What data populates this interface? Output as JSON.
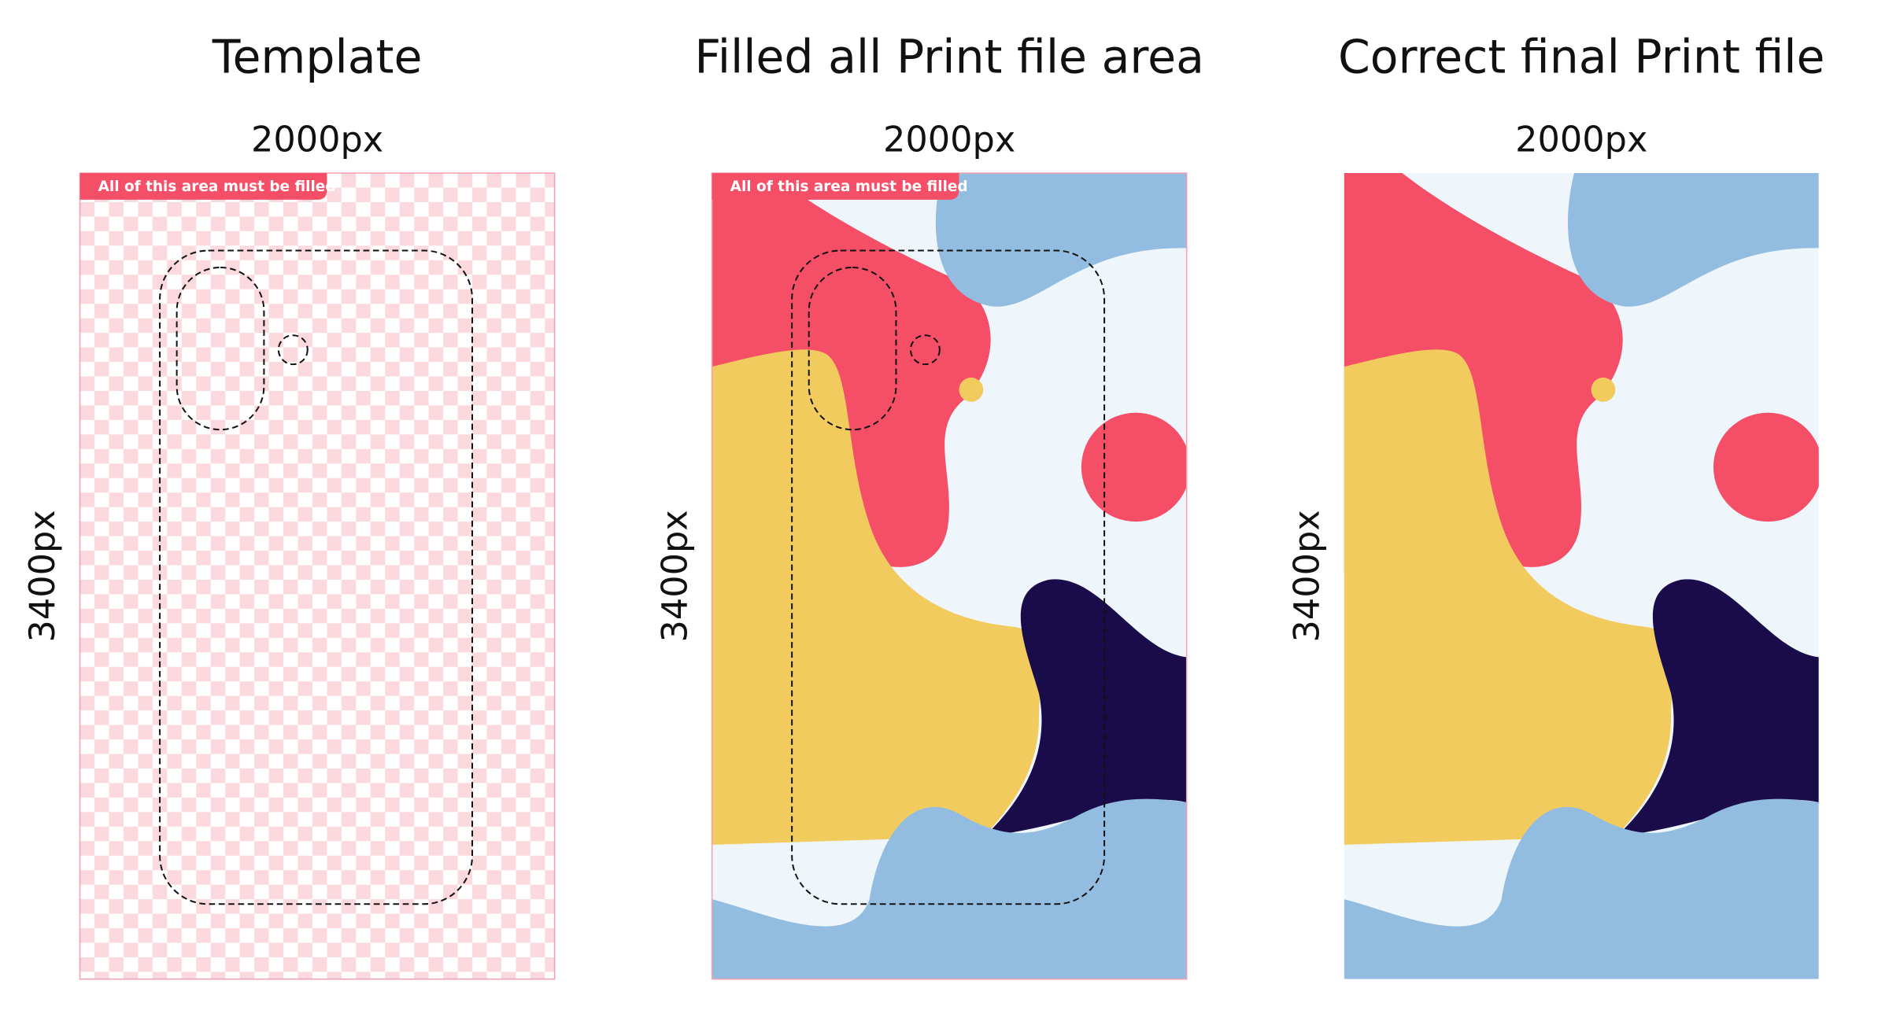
{
  "panels": [
    {
      "title": "Template",
      "width_label": "2000px",
      "height_label": "3400px",
      "badge": "All of this area must be filled"
    },
    {
      "title": "Filled all Print file area",
      "width_label": "2000px",
      "height_label": "3400px",
      "badge": "All of this area must be filled"
    },
    {
      "title": "Correct final Print file",
      "width_label": "2000px",
      "height_label": "3400px"
    }
  ]
}
